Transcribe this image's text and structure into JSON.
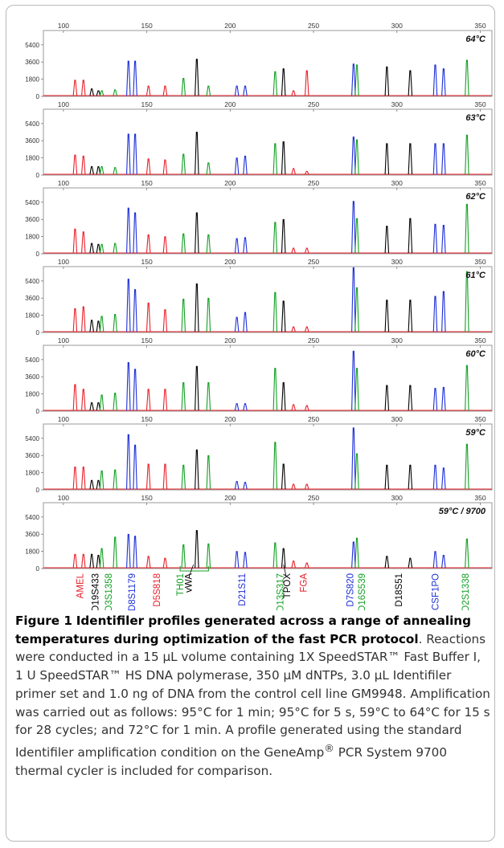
{
  "colors": {
    "red": "#e8202a",
    "blue": "#1d2fd8",
    "green": "#13a023",
    "black": "#000000"
  },
  "chart_data": {
    "type": "line",
    "x_ticks": [
      100,
      150,
      200,
      250,
      300,
      350
    ],
    "xlim": [
      88,
      357
    ],
    "y_ticks": [
      0,
      1800,
      3600,
      5400
    ],
    "ylim": [
      0,
      6900
    ],
    "panels": [
      {
        "label": "64°C",
        "heights": [
          1600,
          1600,
          700,
          500,
          500,
          600,
          3600,
          3600,
          1000,
          1000,
          1800,
          3800,
          1000,
          1000,
          1000,
          2500,
          2800,
          500,
          2600,
          3300,
          3200,
          3000,
          2600,
          3200,
          2800,
          3700
        ]
      },
      {
        "label": "63°C",
        "heights": [
          2000,
          1900,
          800,
          800,
          800,
          700,
          4200,
          4200,
          1600,
          1500,
          2100,
          4400,
          1200,
          1700,
          1900,
          3200,
          3400,
          600,
          300,
          3900,
          3600,
          3200,
          3200,
          3200,
          3200,
          4100
        ]
      },
      {
        "label": "62°C",
        "heights": [
          2500,
          2200,
          1000,
          900,
          900,
          1000,
          4700,
          4200,
          1900,
          1700,
          2000,
          4200,
          1900,
          1500,
          1600,
          3200,
          3500,
          500,
          500,
          5400,
          3600,
          2800,
          3600,
          3000,
          2900,
          5100
        ]
      },
      {
        "label": "61°C",
        "heights": [
          2400,
          2600,
          1200,
          1100,
          1600,
          1800,
          5500,
          4400,
          3000,
          2300,
          3400,
          5000,
          3500,
          1500,
          2000,
          4100,
          3200,
          500,
          500,
          6700,
          4600,
          3300,
          3300,
          3700,
          4200,
          6300
        ]
      },
      {
        "label": "60°C",
        "heights": [
          2700,
          2200,
          800,
          800,
          1600,
          1800,
          5000,
          4300,
          2200,
          2200,
          2900,
          4600,
          2900,
          700,
          700,
          4400,
          2900,
          600,
          500,
          6200,
          4400,
          2600,
          2600,
          2300,
          2400,
          4700
        ]
      },
      {
        "label": "59°C",
        "heights": [
          2300,
          2300,
          900,
          900,
          1900,
          2000,
          5700,
          4600,
          2600,
          2600,
          2500,
          4100,
          3500,
          800,
          700,
          4900,
          2600,
          500,
          500,
          6400,
          3700,
          2500,
          2500,
          2500,
          2200,
          4700
        ]
      },
      {
        "label": "59°C / 9700",
        "heights": [
          1400,
          1400,
          1400,
          1300,
          2000,
          3200,
          3500,
          3300,
          1200,
          1000,
          2400,
          3900,
          2500,
          1700,
          1600,
          2600,
          2000,
          700,
          500,
          2700,
          3100,
          1200,
          1000,
          1700,
          1300,
          3000
        ]
      }
    ],
    "peaks": [
      {
        "x": 107,
        "color": "red"
      },
      {
        "x": 112,
        "color": "red"
      },
      {
        "x": 117,
        "color": "black"
      },
      {
        "x": 121,
        "color": "black"
      },
      {
        "x": 123,
        "color": "green"
      },
      {
        "x": 131,
        "color": "green"
      },
      {
        "x": 139,
        "color": "blue"
      },
      {
        "x": 143,
        "color": "blue"
      },
      {
        "x": 151,
        "color": "red"
      },
      {
        "x": 161,
        "color": "red"
      },
      {
        "x": 172,
        "color": "green"
      },
      {
        "x": 180,
        "color": "black"
      },
      {
        "x": 187,
        "color": "green"
      },
      {
        "x": 204,
        "color": "blue"
      },
      {
        "x": 209,
        "color": "blue"
      },
      {
        "x": 227,
        "color": "green"
      },
      {
        "x": 232,
        "color": "black"
      },
      {
        "x": 238,
        "color": "red"
      },
      {
        "x": 246,
        "color": "red"
      },
      {
        "x": 274,
        "color": "blue"
      },
      {
        "x": 276,
        "color": "green"
      },
      {
        "x": 294,
        "color": "black"
      },
      {
        "x": 308,
        "color": "black"
      },
      {
        "x": 323,
        "color": "blue"
      },
      {
        "x": 328,
        "color": "blue"
      },
      {
        "x": 342,
        "color": "green"
      }
    ],
    "loci": [
      {
        "name": "AMEL",
        "color": "red",
        "x": 110
      },
      {
        "name": "D19S433",
        "color": "black",
        "x": 119
      },
      {
        "name": "D3S1358",
        "color": "green",
        "x": 127
      },
      {
        "name": "D8S1179",
        "color": "blue",
        "x": 141
      },
      {
        "name": "D5S818",
        "color": "red",
        "x": 156
      },
      {
        "name": "TH01",
        "color": "green",
        "x": 170
      },
      {
        "name": "vWA",
        "color": "black",
        "x": 175
      },
      {
        "name": "D21S11",
        "color": "blue",
        "x": 207
      },
      {
        "name": "D13S317",
        "color": "green",
        "x": 230
      },
      {
        "name": "TPOX",
        "color": "black",
        "x": 234
      },
      {
        "name": "FGA",
        "color": "red",
        "x": 244
      },
      {
        "name": "D7S820",
        "color": "blue",
        "x": 272
      },
      {
        "name": "D16S539",
        "color": "green",
        "x": 279
      },
      {
        "name": "D18S51",
        "color": "black",
        "x": 301
      },
      {
        "name": "CSF1PO",
        "color": "blue",
        "x": 323
      },
      {
        "name": "D2S1338",
        "color": "green",
        "x": 341
      }
    ]
  },
  "caption": {
    "figure_label": "Figure 1",
    "title": "Identifiler profiles generated across a range of annealing temperatures during optimization of the fast PCR protocol",
    "text_1": ". Reactions were conducted in a 15 μL volume containing 1X SpeedSTAR™ Fast Buffer I, 1 U SpeedSTAR™ HS DNA polymerase, 350 μM dNTPs, 3.0 μL Identifiler primer set and 1.0 ng of DNA from the control cell line GM9948. Amplification was carried out as follows: 95°C for 1 min; 95°C for 5 s, 59°C to 64°C for 15 s for 28 cycles; and 72°C for 1 min. A profile generated using the standard Identifiler amplification condition on the GeneAmp",
    "superscript": "®",
    "text_2": " PCR System 9700 thermal cycler is included for comparison."
  }
}
